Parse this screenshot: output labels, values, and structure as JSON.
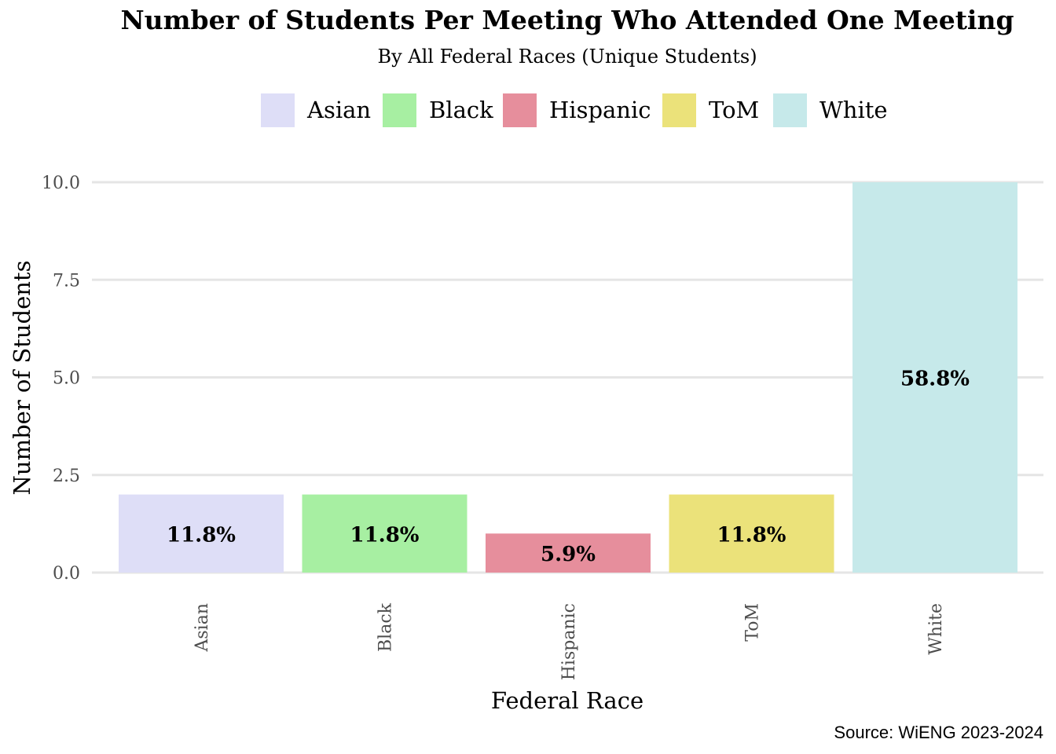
{
  "chart_data": {
    "type": "bar",
    "title": "Number of Students Per Meeting Who Attended One Meeting",
    "subtitle": "By All Federal Races (Unique Students)",
    "xlabel": "Federal Race",
    "ylabel": "Number of Students",
    "categories": [
      "Asian",
      "Black",
      "Hispanic",
      "ToM",
      "White"
    ],
    "values": [
      2,
      2,
      1,
      2,
      10
    ],
    "data_labels": [
      "11.8%",
      "11.8%",
      "5.9%",
      "11.8%",
      "58.8%"
    ],
    "colors": [
      "#DEDEF7",
      "#A7EFA2",
      "#E68E9C",
      "#EBE27A",
      "#C6E9EA"
    ],
    "ylim": [
      0,
      10
    ],
    "y_ticks": [
      "0.0",
      "2.5",
      "5.0",
      "7.5",
      "10.0"
    ],
    "y_tick_values": [
      0,
      2.5,
      5,
      7.5,
      10
    ],
    "grid": "horizontal",
    "legend_position": "top",
    "caption": "Source: WiENG 2023-2024"
  }
}
